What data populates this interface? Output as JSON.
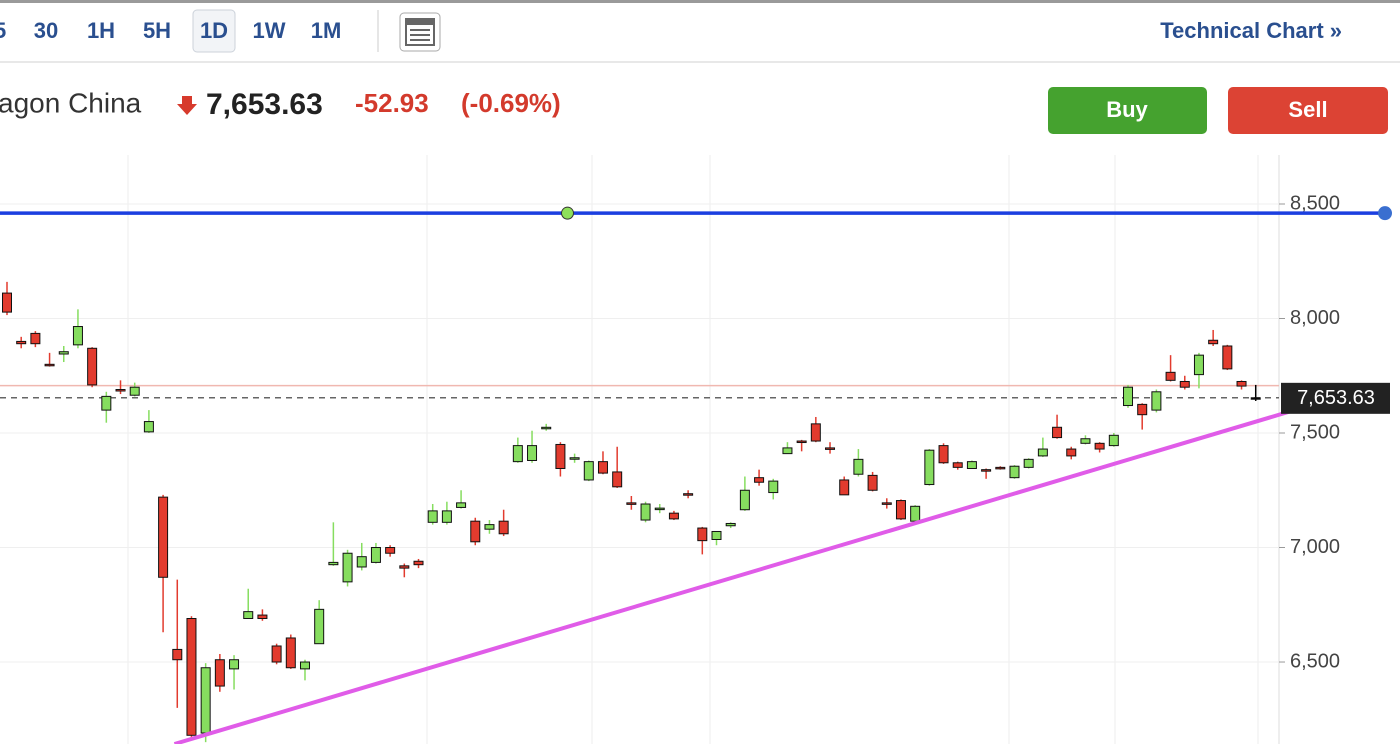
{
  "toolbar": {
    "intervals": [
      "5",
      "30",
      "1H",
      "5H",
      "1D",
      "1W",
      "1M"
    ],
    "selected": "1D",
    "link": "Technical Chart »"
  },
  "header": {
    "name": "agon China",
    "price": "7,653.63",
    "change": "-52.93",
    "change_pct": "(-0.69%)",
    "buy": "Buy",
    "sell": "Sell"
  },
  "chart_data": {
    "type": "candlestick",
    "ylim": [
      6142,
      8714
    ],
    "yticks": [
      {
        "value": 6500,
        "label": "6,500"
      },
      {
        "value": 7000,
        "label": "7,000"
      },
      {
        "value": 7500,
        "label": "7,500"
      },
      {
        "value": 8000,
        "label": "8,000"
      },
      {
        "value": 8500,
        "label": "8,500"
      }
    ],
    "up_color": "#86dd5f",
    "down_color": "#e23b2e",
    "last": {
      "value": 7653.63,
      "label": "7,653.63"
    },
    "prev_close": 7707,
    "hline": {
      "value": 8460,
      "color": "#1b3fe0",
      "anchor_index": 39.5
    },
    "trendline": {
      "from": [
        11.8,
        6142
      ],
      "to": [
        93.6,
        7653
      ],
      "color": "#e05ce8"
    },
    "candles": [
      [
        8111,
        8160,
        8015,
        8028
      ],
      [
        7900,
        7920,
        7870,
        7890
      ],
      [
        7935,
        7945,
        7875,
        7890
      ],
      [
        7800,
        7850,
        7790,
        7795
      ],
      [
        7845,
        7880,
        7810,
        7855
      ],
      [
        7885,
        8040,
        7870,
        7965
      ],
      [
        7870,
        7875,
        7700,
        7710
      ],
      [
        7600,
        7680,
        7545,
        7660
      ],
      [
        7690,
        7730,
        7670,
        7685
      ],
      [
        7665,
        7720,
        7660,
        7700
      ],
      [
        7505,
        7600,
        7500,
        7550
      ],
      [
        7220,
        7230,
        6630,
        6870
      ],
      [
        6555,
        6860,
        6300,
        6510
      ],
      [
        6690,
        6700,
        6170,
        6180
      ],
      [
        6190,
        6495,
        6150,
        6475
      ],
      [
        6510,
        6535,
        6370,
        6395
      ],
      [
        6470,
        6530,
        6380,
        6510
      ],
      [
        6690,
        6820,
        6690,
        6720
      ],
      [
        6705,
        6730,
        6680,
        6690
      ],
      [
        6570,
        6580,
        6490,
        6500
      ],
      [
        6605,
        6620,
        6470,
        6475
      ],
      [
        6470,
        6510,
        6420,
        6500
      ],
      [
        6580,
        6770,
        6580,
        6730
      ],
      [
        6925,
        7110,
        6920,
        6935
      ],
      [
        6850,
        6990,
        6830,
        6975
      ],
      [
        6915,
        7020,
        6900,
        6960
      ],
      [
        6935,
        7020,
        6930,
        7000
      ],
      [
        7000,
        7010,
        6960,
        6975
      ],
      [
        6920,
        6930,
        6870,
        6910
      ],
      [
        6940,
        6950,
        6910,
        6925
      ],
      [
        7110,
        7190,
        7100,
        7160
      ],
      [
        7110,
        7200,
        7100,
        7160
      ],
      [
        7175,
        7250,
        7170,
        7195
      ],
      [
        7115,
        7130,
        7010,
        7025
      ],
      [
        7080,
        7120,
        7060,
        7100
      ],
      [
        7115,
        7165,
        7050,
        7060
      ],
      [
        7375,
        7480,
        7370,
        7445
      ],
      [
        7380,
        7510,
        7370,
        7445
      ],
      [
        7520,
        7540,
        7510,
        7525
      ],
      [
        7450,
        7460,
        7310,
        7345
      ],
      [
        7390,
        7410,
        7370,
        7392
      ],
      [
        7295,
        7380,
        7290,
        7375
      ],
      [
        7375,
        7420,
        7320,
        7325
      ],
      [
        7330,
        7440,
        7260,
        7265
      ],
      [
        7195,
        7225,
        7165,
        7190
      ],
      [
        7120,
        7200,
        7110,
        7190
      ],
      [
        7170,
        7190,
        7150,
        7172
      ],
      [
        7150,
        7160,
        7120,
        7125
      ],
      [
        7235,
        7250,
        7215,
        7232
      ],
      [
        7085,
        7090,
        6970,
        7030
      ],
      [
        7035,
        7070,
        7010,
        7070
      ],
      [
        7095,
        7110,
        7085,
        7105
      ],
      [
        7165,
        7310,
        7160,
        7250
      ],
      [
        7305,
        7340,
        7270,
        7285
      ],
      [
        7240,
        7300,
        7210,
        7290
      ],
      [
        7410,
        7460,
        7410,
        7435
      ],
      [
        7465,
        7470,
        7420,
        7460
      ],
      [
        7540,
        7570,
        7460,
        7465
      ],
      [
        7435,
        7460,
        7410,
        7433
      ],
      [
        7295,
        7310,
        7230,
        7230
      ],
      [
        7320,
        7430,
        7310,
        7385
      ],
      [
        7315,
        7330,
        7245,
        7250
      ],
      [
        7195,
        7215,
        7170,
        7192
      ],
      [
        7205,
        7210,
        7120,
        7125
      ],
      [
        7115,
        7185,
        7110,
        7180
      ],
      [
        7275,
        7430,
        7270,
        7425
      ],
      [
        7445,
        7455,
        7365,
        7370
      ],
      [
        7370,
        7375,
        7340,
        7350
      ],
      [
        7345,
        7380,
        7345,
        7375
      ],
      [
        7340,
        7345,
        7300,
        7338
      ],
      [
        7350,
        7355,
        7340,
        7347
      ],
      [
        7305,
        7360,
        7300,
        7355
      ],
      [
        7350,
        7390,
        7345,
        7385
      ],
      [
        7400,
        7480,
        7395,
        7430
      ],
      [
        7525,
        7580,
        7475,
        7480
      ],
      [
        7430,
        7440,
        7385,
        7400
      ],
      [
        7455,
        7490,
        7450,
        7475
      ],
      [
        7455,
        7460,
        7415,
        7430
      ],
      [
        7445,
        7500,
        7440,
        7490
      ],
      [
        7620,
        7710,
        7610,
        7700
      ],
      [
        7625,
        7630,
        7515,
        7580
      ],
      [
        7600,
        7690,
        7590,
        7680
      ],
      [
        7765,
        7840,
        7725,
        7730
      ],
      [
        7725,
        7750,
        7690,
        7700
      ],
      [
        7755,
        7850,
        7695,
        7840
      ],
      [
        7905,
        7950,
        7880,
        7890
      ],
      [
        7880,
        7885,
        7775,
        7780
      ],
      [
        7725,
        7730,
        7690,
        7705
      ],
      [
        7654,
        7710,
        7640,
        7654
      ]
    ]
  }
}
